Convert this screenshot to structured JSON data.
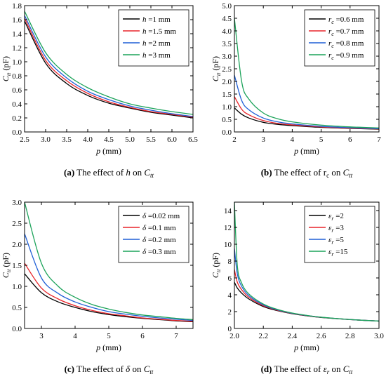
{
  "chart_data": [
    {
      "type": "line",
      "caption": {
        "letter": "(a)",
        "pre": "The effect of",
        "var": "h",
        "on": "on",
        "sym": "C",
        "sub": "tt"
      },
      "xlabel": "p (mm)",
      "ylabel": {
        "sym": "C",
        "sub": "tt",
        "unit": "(pF)"
      },
      "xlim": [
        2.5,
        6.5
      ],
      "ylim": [
        0,
        1.8
      ],
      "xticks": [
        2.5,
        3.0,
        3.5,
        4.0,
        4.5,
        5.0,
        5.5,
        6.0,
        6.5
      ],
      "xtick_labels": [
        "2.5",
        "3.0",
        "3.5",
        "4.0",
        "4.5",
        "5.0",
        "5.5",
        "6.0",
        "6.5"
      ],
      "yticks": [
        0,
        0.2,
        0.4,
        0.6,
        0.8,
        1.0,
        1.2,
        1.4,
        1.6,
        1.8
      ],
      "ytick_labels": [
        "0.0",
        "0.2",
        "0.4",
        "0.6",
        "0.8",
        "1.0",
        "1.2",
        "1.4",
        "1.6",
        "1.8"
      ],
      "legend_position": "top-right",
      "series": [
        {
          "name": "h =1 mm",
          "sym": "h",
          "sub": "",
          "rest": " =1 mm",
          "color": "#000000",
          "x": [
            2.5,
            3.0,
            3.5,
            4.0,
            4.5,
            5.0,
            5.5,
            6.0,
            6.5
          ],
          "values": [
            1.58,
            0.98,
            0.69,
            0.52,
            0.41,
            0.34,
            0.28,
            0.24,
            0.2
          ]
        },
        {
          "name": "h =1.5 mm",
          "sym": "h",
          "sub": "",
          "rest": " =1.5 mm",
          "color": "#e8242a",
          "x": [
            2.5,
            3.0,
            3.5,
            4.0,
            4.5,
            5.0,
            5.5,
            6.0,
            6.5
          ],
          "values": [
            1.62,
            1.02,
            0.73,
            0.55,
            0.43,
            0.35,
            0.29,
            0.25,
            0.21
          ]
        },
        {
          "name": "h =2 mm",
          "sym": "h",
          "sub": "",
          "rest": " =2 mm",
          "color": "#1f5fd6",
          "x": [
            2.5,
            3.0,
            3.5,
            4.0,
            4.5,
            5.0,
            5.5,
            6.0,
            6.5
          ],
          "values": [
            1.66,
            1.07,
            0.77,
            0.58,
            0.46,
            0.37,
            0.31,
            0.26,
            0.22
          ]
        },
        {
          "name": "h =3 mm",
          "sym": "h",
          "sub": "",
          "rest": " =3 mm",
          "color": "#1ca35a",
          "x": [
            2.5,
            3.0,
            3.5,
            4.0,
            4.5,
            5.0,
            5.5,
            6.0,
            6.5
          ],
          "values": [
            1.72,
            1.13,
            0.82,
            0.63,
            0.5,
            0.4,
            0.34,
            0.29,
            0.25
          ]
        }
      ]
    },
    {
      "type": "line",
      "caption": {
        "letter": "(b)",
        "pre": "The effect of",
        "var": "rc",
        "on": "on",
        "sym": "C",
        "sub": "tt"
      },
      "xlabel": "p (mm)",
      "ylabel": {
        "sym": "C",
        "sub": "tt",
        "unit": "(pF)"
      },
      "xlim": [
        2,
        7
      ],
      "ylim": [
        0,
        5.0
      ],
      "xticks": [
        2,
        3,
        4,
        5,
        6,
        7
      ],
      "xtick_labels": [
        "2",
        "3",
        "4",
        "5",
        "6",
        "7"
      ],
      "yticks": [
        0,
        0.5,
        1.0,
        1.5,
        2.0,
        2.5,
        3.0,
        3.5,
        4.0,
        4.5,
        5.0
      ],
      "ytick_labels": [
        "0.0",
        "0.5",
        "1.0",
        "1.5",
        "2.0",
        "2.5",
        "3.0",
        "3.5",
        "4.0",
        "4.5",
        "5.0"
      ],
      "legend_position": "top-right",
      "series": [
        {
          "name": "rc =0.6 mm",
          "sym": "r",
          "sub": "c",
          "rest": " =0.6 mm",
          "color": "#000000",
          "x": [
            2.0,
            2.25,
            2.5,
            3.0,
            3.5,
            4.0,
            5.0,
            6.0,
            7.0
          ],
          "values": [
            0.95,
            0.7,
            0.55,
            0.38,
            0.3,
            0.25,
            0.18,
            0.14,
            0.11
          ]
        },
        {
          "name": "rc =0.7 mm",
          "sym": "r",
          "sub": "c",
          "rest": " =0.7 mm",
          "color": "#e8242a",
          "x": [
            2.0,
            2.25,
            2.5,
            3.0,
            3.5,
            4.0,
            5.0,
            6.0,
            7.0
          ],
          "values": [
            1.4,
            0.9,
            0.68,
            0.45,
            0.34,
            0.28,
            0.2,
            0.15,
            0.12
          ]
        },
        {
          "name": "rc =0.8 mm",
          "sym": "r",
          "sub": "c",
          "rest": " =0.8 mm",
          "color": "#1f5fd6",
          "x": [
            2.0,
            2.25,
            2.5,
            3.0,
            3.5,
            4.0,
            5.0,
            6.0,
            7.0
          ],
          "values": [
            2.25,
            1.25,
            0.88,
            0.55,
            0.4,
            0.32,
            0.22,
            0.17,
            0.13
          ]
        },
        {
          "name": "rc =0.9 mm",
          "sym": "r",
          "sub": "c",
          "rest": " =0.9 mm",
          "color": "#1ca35a",
          "x": [
            2.0,
            2.25,
            2.5,
            3.0,
            3.5,
            4.0,
            5.0,
            6.0,
            7.0
          ],
          "values": [
            4.5,
            2.0,
            1.3,
            0.75,
            0.52,
            0.4,
            0.27,
            0.2,
            0.16
          ]
        }
      ]
    },
    {
      "type": "line",
      "caption": {
        "letter": "(c)",
        "pre": "The effect of",
        "var": "δ",
        "on": "on",
        "sym": "C",
        "sub": "tt"
      },
      "xlabel": "p (mm)",
      "ylabel": {
        "sym": "C",
        "sub": "tt",
        "unit": "(pF)"
      },
      "xlim": [
        2.5,
        7.5
      ],
      "ylim": [
        0,
        3.0
      ],
      "xticks": [
        3,
        4,
        5,
        6,
        7
      ],
      "xtick_labels": [
        "3",
        "4",
        "5",
        "6",
        "7"
      ],
      "yticks": [
        0,
        0.5,
        1.0,
        1.5,
        2.0,
        2.5,
        3.0
      ],
      "ytick_labels": [
        "0.0",
        "0.5",
        "1.0",
        "1.5",
        "2.0",
        "2.5",
        "3.0"
      ],
      "legend_position": "top-right",
      "series": [
        {
          "name": "δ =0.02 mm",
          "sym": "δ",
          "sub": "",
          "rest": " =0.02 mm",
          "color": "#000000",
          "x": [
            2.5,
            3.0,
            3.5,
            4.0,
            4.5,
            5.0,
            5.5,
            6.0,
            6.5,
            7.0,
            7.5
          ],
          "values": [
            1.3,
            0.85,
            0.63,
            0.5,
            0.4,
            0.33,
            0.28,
            0.24,
            0.21,
            0.18,
            0.16
          ]
        },
        {
          "name": "δ =0.1 mm",
          "sym": "δ",
          "sub": "",
          "rest": " =0.1 mm",
          "color": "#e8242a",
          "x": [
            2.5,
            3.0,
            3.5,
            4.0,
            4.5,
            5.0,
            5.5,
            6.0,
            6.5,
            7.0,
            7.5
          ],
          "values": [
            1.55,
            0.96,
            0.7,
            0.54,
            0.43,
            0.35,
            0.3,
            0.25,
            0.22,
            0.19,
            0.17
          ]
        },
        {
          "name": "δ =0.2 mm",
          "sym": "δ",
          "sub": "",
          "rest": " =0.2 mm",
          "color": "#1f5fd6",
          "x": [
            2.5,
            3.0,
            3.5,
            4.0,
            4.5,
            5.0,
            5.5,
            6.0,
            6.5,
            7.0,
            7.5
          ],
          "values": [
            2.25,
            1.2,
            0.83,
            0.63,
            0.5,
            0.4,
            0.34,
            0.29,
            0.25,
            0.22,
            0.19
          ]
        },
        {
          "name": "δ =0.3 mm",
          "sym": "δ",
          "sub": "",
          "rest": " =0.3 mm",
          "color": "#1ca35a",
          "x": [
            2.5,
            3.0,
            3.5,
            4.0,
            4.5,
            5.0,
            5.5,
            6.0,
            6.5,
            7.0,
            7.5
          ],
          "values": [
            3.0,
            1.55,
            1.0,
            0.74,
            0.57,
            0.46,
            0.38,
            0.32,
            0.28,
            0.24,
            0.21
          ]
        }
      ]
    },
    {
      "type": "line",
      "caption": {
        "letter": "(d)",
        "pre": "The effect of",
        "var": "εr",
        "on": "on",
        "sym": "C",
        "sub": "tt"
      },
      "xlabel": "p (mm)",
      "ylabel": {
        "sym": "C",
        "sub": "tt",
        "unit": "(pF)"
      },
      "xlim": [
        2.0,
        3.0
      ],
      "ylim": [
        0,
        15
      ],
      "xticks": [
        2.0,
        2.2,
        2.4,
        2.6,
        2.8,
        3.0
      ],
      "xtick_labels": [
        "2.0",
        "2.2",
        "2.4",
        "2.6",
        "2.8",
        "3.0"
      ],
      "yticks": [
        0,
        2,
        4,
        6,
        8,
        10,
        12,
        14
      ],
      "ytick_labels": [
        "0",
        "2",
        "4",
        "6",
        "8",
        "10",
        "12",
        "14"
      ],
      "legend_position": "top-right",
      "series": [
        {
          "name": "εr =2",
          "sym": "ε",
          "sub": "r",
          "rest": " =2",
          "color": "#000000",
          "x": [
            2.0,
            2.02,
            2.05,
            2.1,
            2.2,
            2.3,
            2.4,
            2.5,
            2.6,
            2.8,
            3.0
          ],
          "values": [
            5.5,
            4.8,
            4.2,
            3.5,
            2.6,
            2.1,
            1.75,
            1.5,
            1.3,
            1.05,
            0.88
          ]
        },
        {
          "name": "εr =3",
          "sym": "ε",
          "sub": "r",
          "rest": " =3",
          "color": "#e8242a",
          "x": [
            2.0,
            2.02,
            2.05,
            2.1,
            2.2,
            2.3,
            2.4,
            2.5,
            2.6,
            2.8,
            3.0
          ],
          "values": [
            7.0,
            5.5,
            4.6,
            3.7,
            2.7,
            2.15,
            1.78,
            1.52,
            1.32,
            1.06,
            0.88
          ]
        },
        {
          "name": "εr =5",
          "sym": "ε",
          "sub": "r",
          "rest": " =5",
          "color": "#1f5fd6",
          "x": [
            2.0,
            2.02,
            2.05,
            2.1,
            2.2,
            2.3,
            2.4,
            2.5,
            2.6,
            2.8,
            3.0
          ],
          "values": [
            9.5,
            6.5,
            5.0,
            3.9,
            2.8,
            2.2,
            1.8,
            1.54,
            1.33,
            1.06,
            0.88
          ]
        },
        {
          "name": "εr =15",
          "sym": "ε",
          "sub": "r",
          "rest": " =15",
          "color": "#1ca35a",
          "x": [
            2.0,
            2.02,
            2.05,
            2.1,
            2.2,
            2.3,
            2.4,
            2.5,
            2.6,
            2.8,
            3.0
          ],
          "values": [
            15.0,
            7.5,
            5.4,
            4.1,
            2.9,
            2.25,
            1.83,
            1.55,
            1.34,
            1.06,
            0.88
          ]
        }
      ]
    }
  ]
}
